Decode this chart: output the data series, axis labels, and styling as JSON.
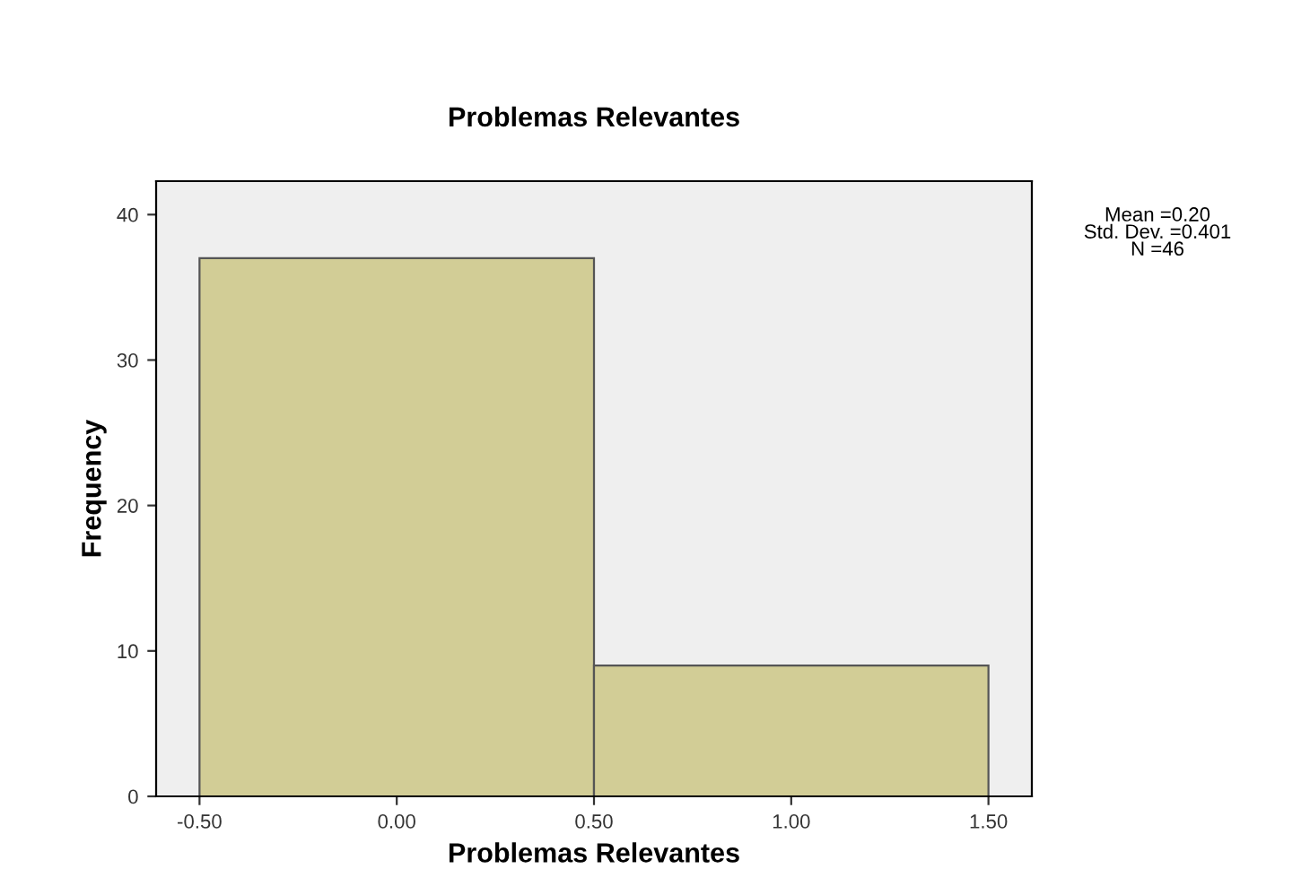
{
  "chart_data": {
    "type": "histogram",
    "title": "Problemas Relevantes",
    "xlabel": "Problemas Relevantes",
    "ylabel": "Frequency",
    "bins": [
      -0.5,
      0.5,
      1.5
    ],
    "values": [
      37,
      9
    ],
    "color": "#d2cd96",
    "xlim": [
      -0.61,
      1.61
    ],
    "xticks": [
      {
        "value": -0.5,
        "label": "-0.50"
      },
      {
        "value": 0,
        "label": "0.00"
      },
      {
        "value": 0.5,
        "label": "0.50"
      },
      {
        "value": 1,
        "label": "1.00"
      },
      {
        "value": 1.5,
        "label": "1.50"
      }
    ],
    "ylim": [
      0,
      42.3
    ],
    "yticks": [
      0,
      10,
      20,
      30,
      40
    ],
    "grid": false,
    "legend": false,
    "annotations": [
      "Mean =0.20\nStd. Dev. =0.401\nN =46"
    ]
  }
}
